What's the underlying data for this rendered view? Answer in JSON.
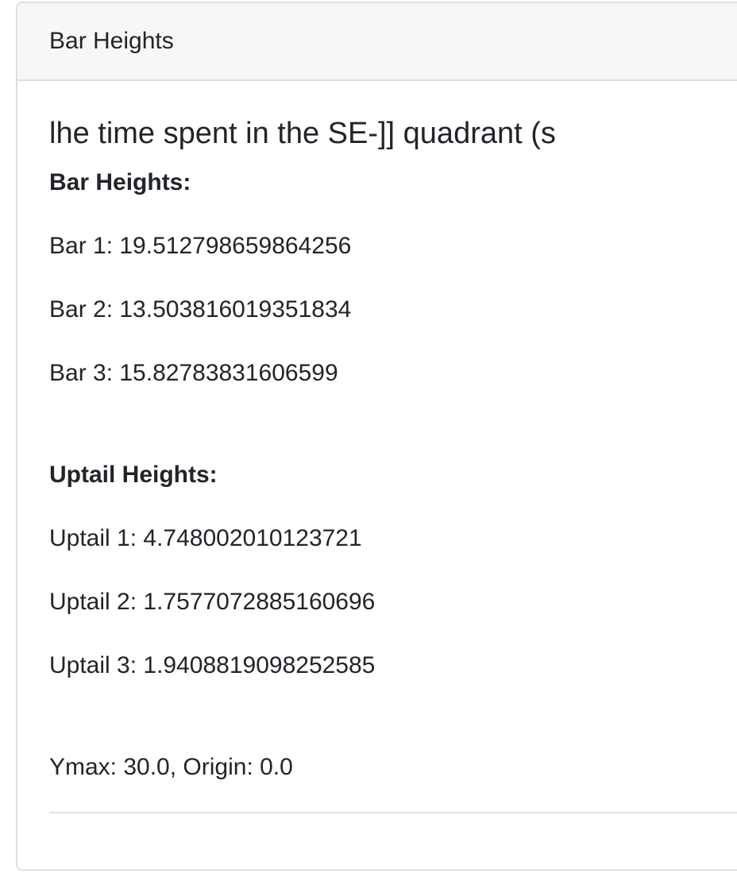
{
  "card": {
    "header": "Bar Heights",
    "title": "lhe time spent in the SE-]] quadrant (s",
    "bar_heading": "Bar Heights:",
    "bars": [
      "Bar 1: 19.512798659864256",
      "Bar 2: 13.503816019351834",
      "Bar 3: 15.82783831606599"
    ],
    "uptail_heading": "Uptail Heights:",
    "uptails": [
      "Uptail 1: 4.748002010123721",
      "Uptail 2: 1.7577072885160696",
      "Uptail 3: 1.9408819098252585"
    ],
    "footer": "Ymax: 30.0, Origin: 0.0"
  }
}
